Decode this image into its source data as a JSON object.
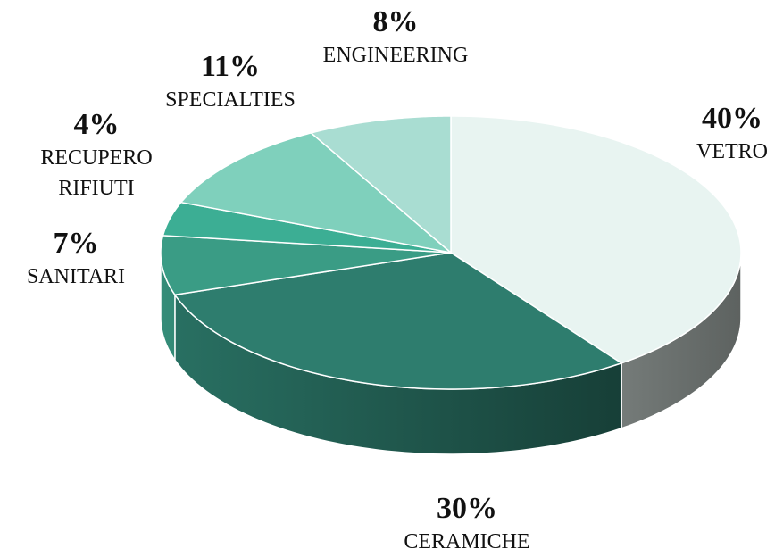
{
  "chart_data": {
    "type": "pie3d",
    "categories": [
      "VETRO",
      "CERAMICHE",
      "SANITARI",
      "RECUPERO RIFIUTI",
      "SPECIALTIES",
      "ENGINEERING"
    ],
    "values": [
      40,
      30,
      7,
      4,
      11,
      8
    ],
    "value_labels": [
      "40%",
      "30%",
      "7%",
      "4%",
      "11%",
      "8%"
    ],
    "colors": [
      "#e8f4f1",
      "#2e7d6e",
      "#3a9c85",
      "#3cae94",
      "#7fd0bc",
      "#a9ddd2"
    ]
  }
}
